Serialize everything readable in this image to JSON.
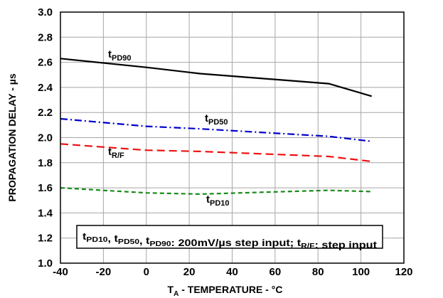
{
  "chart_data": {
    "type": "line",
    "title": "",
    "xlabel": {
      "main": "T",
      "sub": "A",
      "rest": " - TEMPERATURE - °C"
    },
    "ylabel": "PROPAGATION DELAY - µs",
    "xlim": [
      -40,
      120
    ],
    "ylim": [
      1.0,
      3.0
    ],
    "xticks": [
      -40,
      -20,
      0,
      20,
      40,
      60,
      80,
      100,
      120
    ],
    "xtick_labels": [
      "-40",
      "-20",
      "0",
      "20",
      "40",
      "60",
      "80",
      "100",
      "120"
    ],
    "yticks": [
      1.0,
      1.2,
      1.4,
      1.6,
      1.8,
      2.0,
      2.2,
      2.4,
      2.6,
      2.8,
      3.0
    ],
    "ytick_labels": [
      "1.0",
      "1.2",
      "1.4",
      "1.6",
      "1.8",
      "2.0",
      "2.2",
      "2.4",
      "2.6",
      "2.8",
      "3.0"
    ],
    "grid": true,
    "series": [
      {
        "name": "tPD90",
        "label_main": "t",
        "label_sub": "PD90",
        "color": "#000000",
        "dash": "solid",
        "x": [
          -40,
          0,
          25,
          85,
          105
        ],
        "y": [
          2.63,
          2.56,
          2.51,
          2.43,
          2.33
        ]
      },
      {
        "name": "tPD50",
        "label_main": "t",
        "label_sub": "PD50",
        "color": "#0000cc",
        "dash": "dashdot",
        "x": [
          -40,
          0,
          25,
          85,
          105
        ],
        "y": [
          2.15,
          2.09,
          2.07,
          2.01,
          1.97
        ]
      },
      {
        "name": "tR/F",
        "label_main": "t",
        "label_sub": "R/F",
        "color": "#ee1111",
        "dash": "dashed",
        "x": [
          -40,
          0,
          25,
          85,
          105
        ],
        "y": [
          1.95,
          1.9,
          1.89,
          1.85,
          1.81
        ]
      },
      {
        "name": "tPD10",
        "label_main": "t",
        "label_sub": "PD10",
        "color": "#1a8a1a",
        "dash": "shortdash",
        "x": [
          -40,
          0,
          25,
          85,
          105
        ],
        "y": [
          1.6,
          1.56,
          1.55,
          1.58,
          1.57
        ]
      }
    ],
    "annotation": [
      {
        "t": "t",
        "s": "PD10"
      },
      {
        "t": ", ",
        "s": ""
      },
      {
        "t": "t",
        "s": "PD50"
      },
      {
        "t": ", ",
        "s": ""
      },
      {
        "t": "t",
        "s": "PD90"
      },
      {
        "t": ": 200mV/µs step input; ",
        "s": ""
      },
      {
        "t": "t",
        "s": "R/F"
      },
      {
        "t": ": step input",
        "s": ""
      }
    ]
  }
}
